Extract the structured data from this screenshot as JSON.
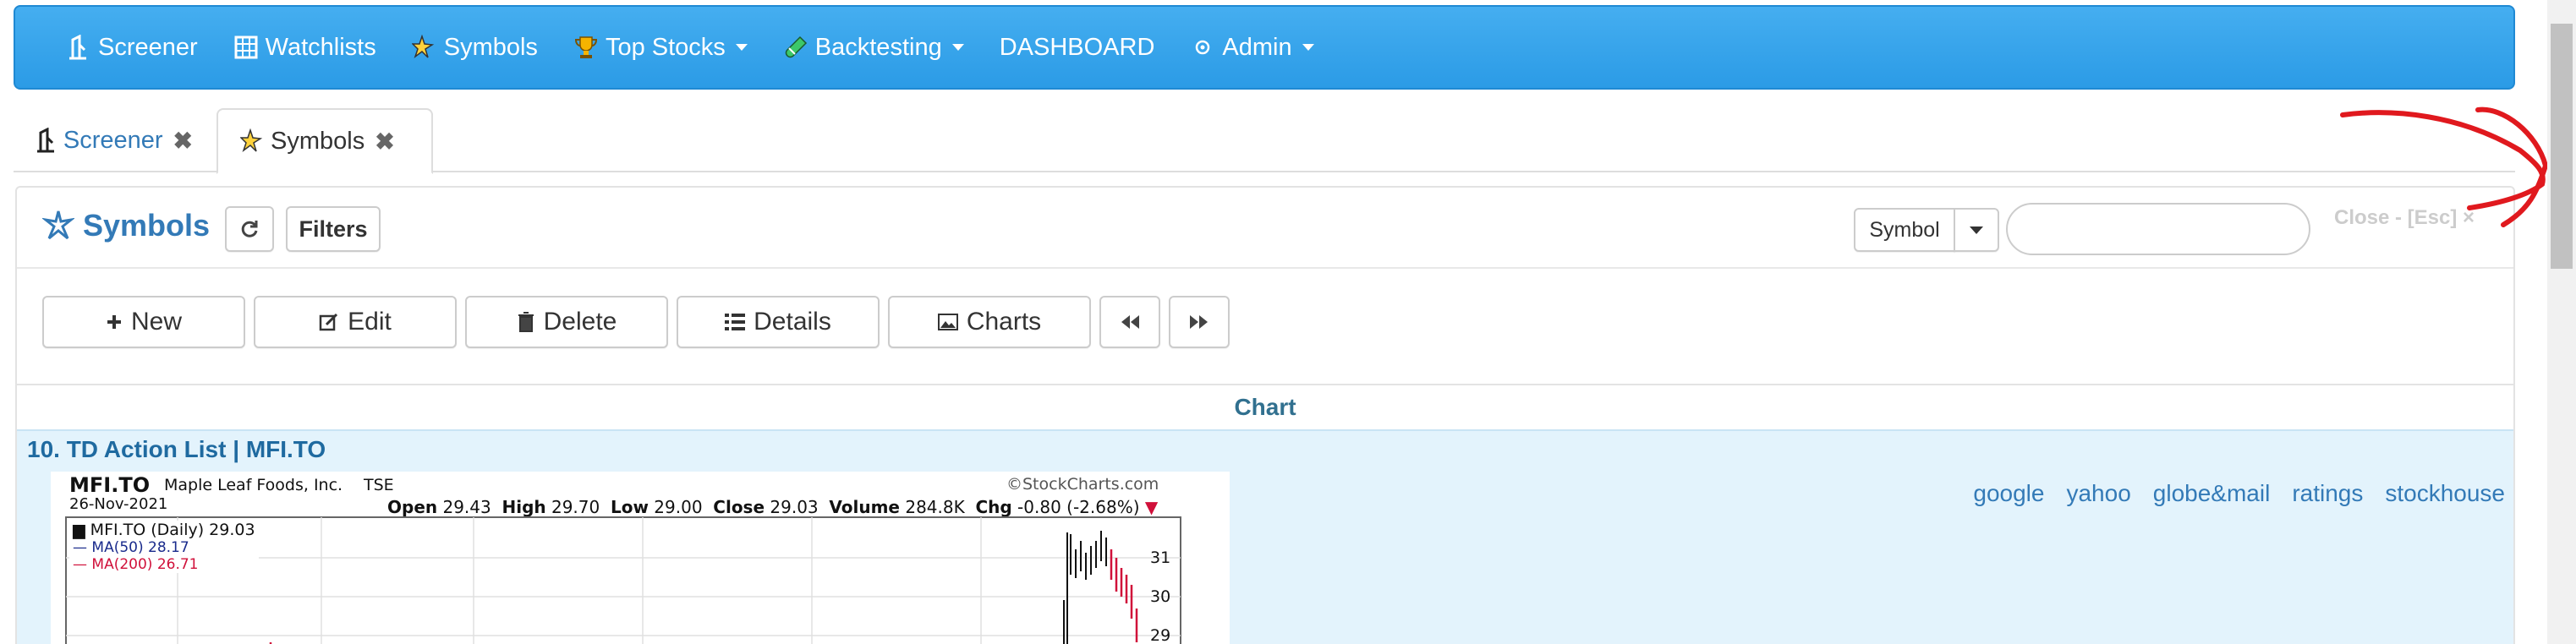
{
  "nav": {
    "items": [
      {
        "label": "Screener",
        "icon": "screener-icon"
      },
      {
        "label": "Watchlists",
        "icon": "watchlist-grid-icon"
      },
      {
        "label": "Symbols",
        "icon": "symbols-sparkle-icon"
      },
      {
        "label": "Top Stocks",
        "icon": "trophy-icon",
        "dropdown": true
      },
      {
        "label": "Backtesting",
        "icon": "test-tube-icon",
        "dropdown": true
      },
      {
        "label": "DASHBOARD"
      },
      {
        "label": "Admin",
        "icon": "gear-icon",
        "dropdown": true
      }
    ]
  },
  "tabs": [
    {
      "label": "Screener",
      "active": false
    },
    {
      "label": "Symbols",
      "active": true
    }
  ],
  "panel": {
    "title": "Symbols",
    "filters_label": "Filters",
    "symbol_select_value": "Symbol",
    "search_value": "",
    "close_label": "Close - [Esc]",
    "close_mark": "×"
  },
  "toolbar": {
    "new_label": "New",
    "edit_label": "Edit",
    "delete_label": "Delete",
    "details_label": "Details",
    "charts_label": "Charts"
  },
  "chart_section": {
    "header": "Chart",
    "list_title": "10. TD Action List | MFI.TO",
    "links": [
      "google",
      "yahoo",
      "globe&mail",
      "ratings",
      "stockhouse"
    ]
  },
  "stock_chart": {
    "symbol": "MFI.TO",
    "company": "Maple Leaf Foods, Inc.",
    "exchange": "TSE",
    "date": "26-Nov-2021",
    "watermark": "©StockCharts.com",
    "open_label": "Open",
    "open": "29.43",
    "high_label": "High",
    "high": "29.70",
    "low_label": "Low",
    "low": "29.00",
    "close_label": "Close",
    "close": "29.03",
    "volume_label": "Volume",
    "volume": "284.8K",
    "chg_label": "Chg",
    "chg": "-0.80 (-2.68%)",
    "legend_main": "MFI.TO (Daily) 29.03",
    "legend_ma50": "MA(50) 28.17",
    "legend_ma200": "MA(200) 26.71",
    "axis_ticks": [
      "31",
      "30",
      "29"
    ],
    "colors": {
      "ma50": "#1a2b8c",
      "ma200": "#d0103a"
    }
  },
  "colors": {
    "navbar": "#2b9be6",
    "link": "#337ab7",
    "chart_bg": "#e3f3fc",
    "annotation": "#e0191e"
  }
}
